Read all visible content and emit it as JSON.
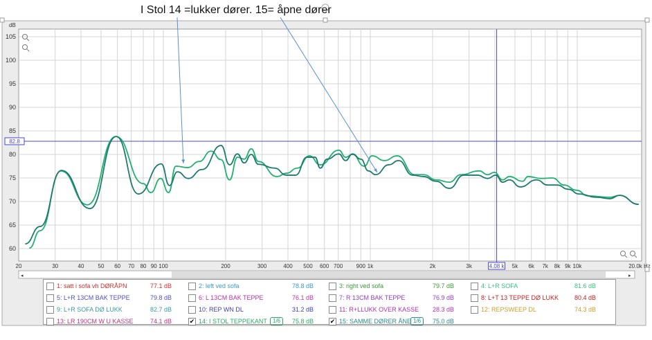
{
  "annotation": "I Stol 14 =lukker dører. 15= åpne dører",
  "chart_data": {
    "type": "line",
    "ylabel": "dB",
    "x_scale": "log",
    "xlim": [
      20,
      20000
    ],
    "ylim": [
      57.4,
      106.6
    ],
    "grid": true,
    "y_ticks": [
      "60",
      "65",
      "70",
      "75",
      "80",
      "85",
      "90",
      "95",
      "100",
      "105"
    ],
    "x_ticks": [
      "20",
      "30",
      "40",
      "50",
      "60",
      "70",
      "80",
      "90",
      "100",
      "200",
      "300",
      "400",
      "500",
      "600",
      "700",
      "900",
      "1k",
      "2k",
      "3k",
      "5k",
      "6k",
      "7k",
      "8k",
      "9k",
      "10k",
      "20.0k Hz"
    ],
    "cursor": {
      "x_label": "4.08 k",
      "x": 4080,
      "y_label": "82.8",
      "y": 82.8
    },
    "series": [
      {
        "name": "14: I STOL TEPPEKANT",
        "color": "#22b070",
        "points": [
          [
            22.5,
            60.1
          ],
          [
            25.4,
            63.8
          ],
          [
            32,
            76.5
          ],
          [
            43,
            69.3
          ],
          [
            59,
            83.8
          ],
          [
            80,
            73.8
          ],
          [
            87,
            71.9
          ],
          [
            97,
            74.9
          ],
          [
            106,
            71.9
          ],
          [
            115,
            77.5
          ],
          [
            131,
            77.2
          ],
          [
            149,
            78.5
          ],
          [
            170,
            80.7
          ],
          [
            190,
            78.9
          ],
          [
            209,
            74.6
          ],
          [
            228,
            79.4
          ],
          [
            246,
            79
          ],
          [
            266,
            81.2
          ],
          [
            288,
            78.5
          ],
          [
            354,
            75.3
          ],
          [
            393,
            76
          ],
          [
            445,
            77.1
          ],
          [
            508,
            79.7
          ],
          [
            573,
            77.8
          ],
          [
            705,
            80.9
          ],
          [
            760,
            79.4
          ],
          [
            820,
            80
          ],
          [
            935,
            77.5
          ],
          [
            1020,
            79.7
          ],
          [
            1170,
            78.7
          ],
          [
            1350,
            79.7
          ],
          [
            1640,
            75.7
          ],
          [
            1810,
            75.7
          ],
          [
            2080,
            74.6
          ],
          [
            2410,
            74.1
          ],
          [
            2740,
            75.7
          ],
          [
            3360,
            76.5
          ],
          [
            3690,
            75.7
          ],
          [
            3980,
            76.2
          ],
          [
            4360,
            74.6
          ],
          [
            4700,
            75.3
          ],
          [
            5450,
            74.3
          ],
          [
            5780,
            75.3
          ],
          [
            6680,
            74.9
          ],
          [
            7580,
            75
          ],
          [
            8650,
            73.5
          ],
          [
            9920,
            72.4
          ],
          [
            11250,
            71.2
          ],
          [
            14400,
            70.9
          ],
          [
            16000,
            71.3
          ],
          [
            19800,
            69.4
          ]
        ]
      },
      {
        "name": "15: SAMME DØRER ÅNE",
        "color": "#1c7a6e",
        "points": [
          [
            21.5,
            61
          ],
          [
            25.4,
            64.7
          ],
          [
            32.2,
            76.6
          ],
          [
            44.2,
            68.5
          ],
          [
            59.2,
            83.8
          ],
          [
            75.8,
            71.6
          ],
          [
            97.7,
            78
          ],
          [
            107,
            73.4
          ],
          [
            117,
            76.3
          ],
          [
            132,
            74.9
          ],
          [
            154,
            76.8
          ],
          [
            190,
            81.9
          ],
          [
            209,
            77.8
          ],
          [
            228,
            80.1
          ],
          [
            246,
            78.2
          ],
          [
            266,
            80
          ],
          [
            288,
            77.9
          ],
          [
            345,
            77.1
          ],
          [
            393,
            75.6
          ],
          [
            436,
            75.6
          ],
          [
            494,
            79.4
          ],
          [
            541,
            79.4
          ],
          [
            573,
            77.1
          ],
          [
            619,
            79
          ],
          [
            705,
            80.1
          ],
          [
            760,
            78.7
          ],
          [
            820,
            80.1
          ],
          [
            900,
            79
          ],
          [
            980,
            76.5
          ],
          [
            1060,
            75.7
          ],
          [
            1230,
            77.8
          ],
          [
            1370,
            78.7
          ],
          [
            1600,
            75.6
          ],
          [
            1810,
            75.3
          ],
          [
            2080,
            74.3
          ],
          [
            2410,
            72.8
          ],
          [
            2830,
            75.6
          ],
          [
            3290,
            75.6
          ],
          [
            3690,
            74.9
          ],
          [
            4040,
            75.6
          ],
          [
            4360,
            74.1
          ],
          [
            4700,
            74.6
          ],
          [
            5310,
            73.1
          ],
          [
            6360,
            74.6
          ],
          [
            7190,
            73.5
          ],
          [
            8000,
            73.5
          ],
          [
            9050,
            72.6
          ],
          [
            10200,
            71.6
          ],
          [
            12400,
            70.9
          ],
          [
            14400,
            70.6
          ],
          [
            16000,
            71.3
          ],
          [
            19800,
            69.4
          ]
        ]
      }
    ]
  },
  "legend": [
    {
      "label": "1: satt i sofa vh DØRÅPN",
      "value": "77.1 dB",
      "color": "#d03030",
      "checked": false
    },
    {
      "label": "2: left ved  sofa",
      "value": "78.8 dB",
      "color": "#3a9ac8",
      "checked": false
    },
    {
      "label": "3: right ved sofa",
      "value": "79.7 dB",
      "color": "#3a9a3a",
      "checked": false
    },
    {
      "label": "4: L+R SOFA",
      "value": "81.6 dB",
      "color": "#3ac080",
      "checked": false
    },
    {
      "label": "5: L+R 13CM BAK TEPPE",
      "value": "79.8 dB",
      "color": "#5050c0",
      "checked": false
    },
    {
      "label": "6: L 13CM BAK TEPPE",
      "value": "76.1 dB",
      "color": "#c030a0",
      "checked": false
    },
    {
      "label": "7: R 13CM BAK TEPPE",
      "value": "76.9 dB",
      "color": "#9040c0",
      "checked": false
    },
    {
      "label": "8: L+T 13 TEPPE DØ LUKK",
      "value": "80.4 dB",
      "color": "#c02020",
      "checked": false
    },
    {
      "label": "9: L+R SOFA DØ LUKK",
      "value": "82.7 dB",
      "color": "#3a9aa0",
      "checked": false
    },
    {
      "label": "10: REP WN DL",
      "value": "31.2 dB",
      "color": "#4040b0",
      "checked": false
    },
    {
      "label": "11: R+LLUKK OVER KASSE",
      "value": "28.3 dB",
      "color": "#b030b0",
      "checked": false
    },
    {
      "label": "12: REPSWEEP DL",
      "value": "74.3 dB",
      "color": "#c8a030",
      "checked": false
    },
    {
      "label": "13: LR 190CM W U KASSE",
      "value": "74.1 dB",
      "color": "#c03080",
      "checked": false
    },
    {
      "label": "14: I STOL TEPPEKANT",
      "value": "75.8 dB",
      "color": "#2aa868",
      "checked": true,
      "smoothing": "1/6"
    },
    {
      "label": "15: SAMME DØRER ÅNE",
      "value": "75.0 dB",
      "color": "#2a8a8a",
      "checked": true,
      "smoothing": "1/6"
    }
  ]
}
